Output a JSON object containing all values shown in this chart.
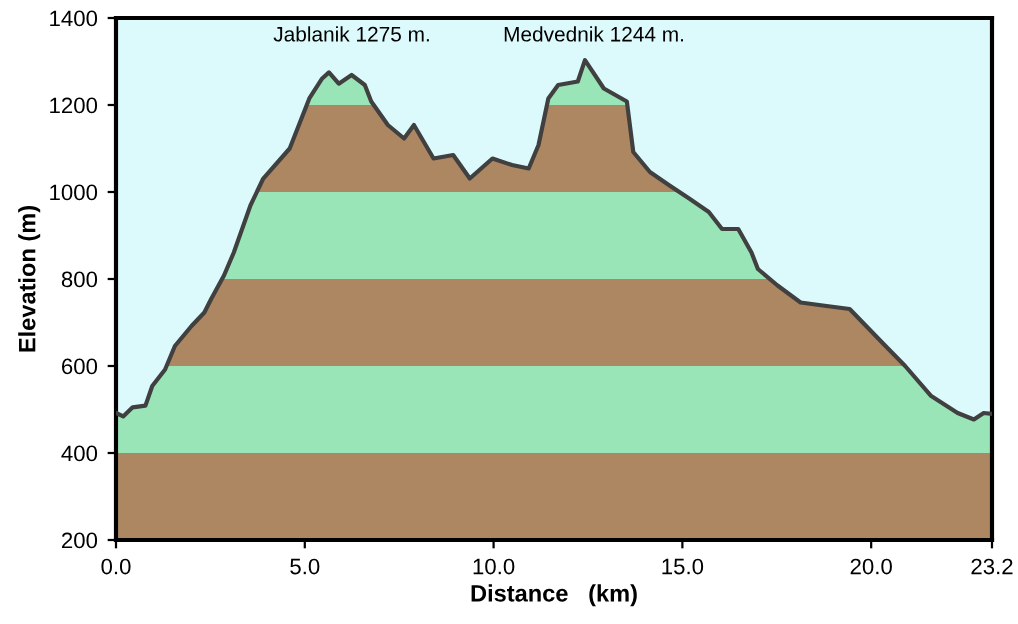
{
  "chart_data": {
    "type": "area",
    "xlabel": "Distance   (km)",
    "ylabel": "Elevation (m)",
    "x": [
      0,
      0.19,
      0.44,
      0.78,
      0.96,
      1.3,
      1.56,
      2.0,
      2.34,
      2.52,
      2.86,
      3.12,
      3.56,
      3.9,
      4.6,
      5.12,
      5.46,
      5.64,
      5.9,
      6.24,
      6.59,
      6.76,
      7.2,
      7.63,
      7.89,
      8.41,
      8.93,
      9.37,
      9.97,
      10.49,
      10.93,
      11.19,
      11.45,
      11.71,
      12.23,
      12.42,
      12.92,
      13.53,
      13.7,
      14.14,
      14.66,
      15.18,
      15.7,
      16.05,
      16.48,
      16.83,
      17.0,
      17.52,
      18.13,
      18.82,
      19.43,
      20.38,
      20.9,
      21.59,
      22.29,
      22.72,
      22.98,
      23.2
    ],
    "series": [
      {
        "color": "#404040",
        "values": [
          492,
          484,
          505,
          509,
          554,
          592,
          646,
          692,
          723,
          754,
          808,
          861,
          969,
          1031,
          1100,
          1215,
          1261,
          1275,
          1249,
          1269,
          1246,
          1208,
          1154,
          1123,
          1154,
          1077,
          1085,
          1031,
          1077,
          1062,
          1054,
          1108,
          1215,
          1246,
          1254,
          1303,
          1238,
          1208,
          1092,
          1046,
          1015,
          985,
          954,
          915,
          915,
          861,
          823,
          785,
          746,
          738,
          731,
          646,
          600,
          531,
          492,
          477,
          492,
          490
        ]
      }
    ],
    "bands": [
      {
        "axis": "y",
        "from": 200,
        "to": 400,
        "color": "#b48c64"
      },
      {
        "axis": "y",
        "from": 400,
        "to": 600,
        "color": "#a0f0c0"
      },
      {
        "axis": "y",
        "from": 600,
        "to": 800,
        "color": "#b48c64"
      },
      {
        "axis": "y",
        "from": 800,
        "to": 1000,
        "color": "#a0f0c0"
      },
      {
        "axis": "y",
        "from": 1000,
        "to": 1200,
        "color": "#b48c64"
      },
      {
        "axis": "y",
        "from": 1200,
        "to": 1400,
        "color": "#a0f0c0"
      }
    ],
    "annotations": [
      "Jablanik 1275 m.",
      "Medvednik 1244 m."
    ],
    "xlim": [
      0,
      23.2
    ],
    "xticks": [
      {
        "value": 0,
        "label": "0.0"
      },
      {
        "value": 5,
        "label": "5.0"
      },
      {
        "value": 10,
        "label": "10.0"
      },
      {
        "value": 15,
        "label": "15.0"
      },
      {
        "value": 20,
        "label": "20.0"
      },
      {
        "value": 23.2,
        "label": "23.2"
      }
    ],
    "ylim": [
      200,
      1400
    ],
    "yticks": [
      200,
      400,
      600,
      800,
      1000,
      1200,
      1400
    ],
    "grid": false
  }
}
